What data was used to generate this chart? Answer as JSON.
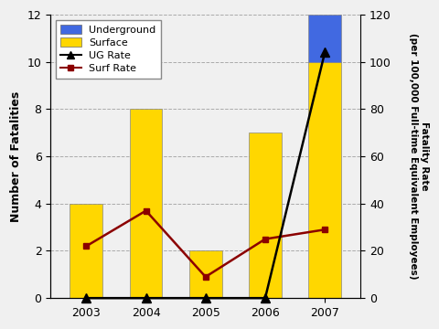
{
  "years": [
    2003,
    2004,
    2005,
    2006,
    2007
  ],
  "underground": [
    0,
    0,
    0,
    0,
    2
  ],
  "surface": [
    4,
    8,
    2,
    7,
    10
  ],
  "ug_rate": [
    0,
    0,
    0,
    0,
    104
  ],
  "surf_rate": [
    22,
    37,
    9,
    25,
    29
  ],
  "ylim_left": [
    0,
    12
  ],
  "ylim_right": [
    0,
    120
  ],
  "yticks_left": [
    0,
    2,
    4,
    6,
    8,
    10,
    12
  ],
  "yticks_right": [
    0,
    20,
    40,
    60,
    80,
    100,
    120
  ],
  "ylabel_left": "Number of Fatalities",
  "ylabel_right": "Fatality Rate\n(per 100,000 Full-time Equivalent Employees)",
  "bar_width": 0.55,
  "underground_color": "#4169E1",
  "surface_color": "#FFD700",
  "ug_rate_color": "#000000",
  "surf_rate_color": "#8B0000",
  "background_color": "#f0f0f0",
  "grid_color": "#aaaaaa"
}
